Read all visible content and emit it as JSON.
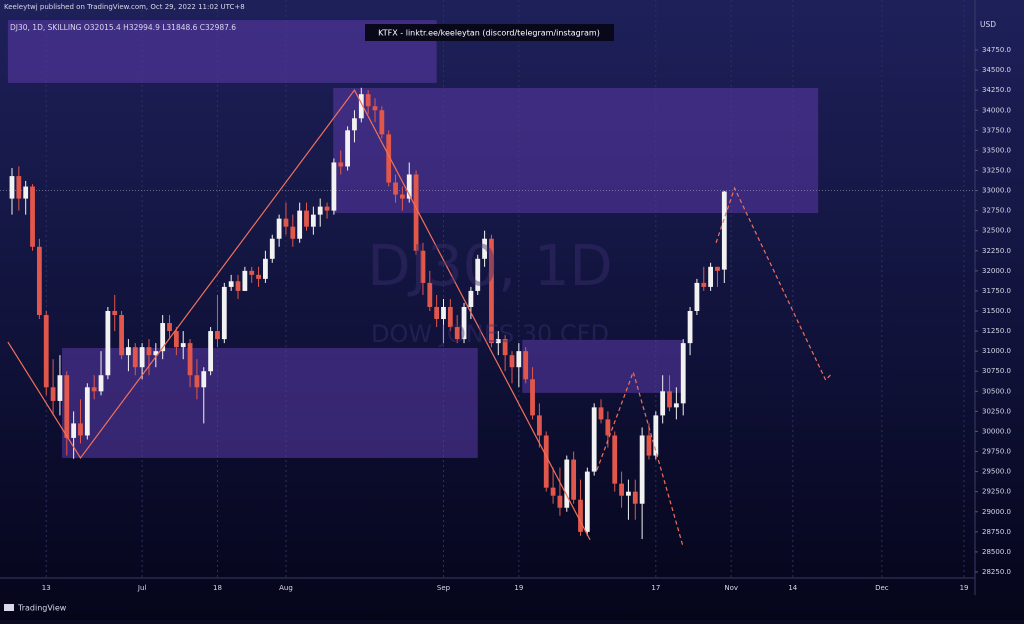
{
  "header": {
    "published": "Keeleytwj published on TradingView.com, Oct 29, 2022 11:02 UTC+8",
    "symbol_line": "DJ30, 1D, SKILLING O32015.4 H32994.9 L31848.6 C32987.6",
    "banner": "KTFX - linktr.ee/keeleytan (discord/telegram/instagram)",
    "brand": "TradingView"
  },
  "chart_data": {
    "type": "candlestick",
    "watermark": "DJ30, 1D",
    "watermark_sub": "DOW JONES 30 CFD",
    "y_unit": "USD",
    "up_color": "#f2f2f2",
    "down_color": "#e2574c",
    "ohlc": [
      [
        32900,
        33280,
        32700,
        33180
      ],
      [
        33180,
        33300,
        32750,
        32900
      ],
      [
        32900,
        33120,
        32700,
        33050
      ],
      [
        33050,
        33080,
        32250,
        32300
      ],
      [
        32300,
        32400,
        31400,
        31450
      ],
      [
        31450,
        31500,
        30450,
        30550
      ],
      [
        30550,
        30900,
        30200,
        30380
      ],
      [
        30380,
        30950,
        30200,
        30700
      ],
      [
        30700,
        30750,
        29700,
        29920
      ],
      [
        29920,
        30250,
        29660,
        30100
      ],
      [
        30100,
        30400,
        29850,
        29950
      ],
      [
        29950,
        30600,
        29900,
        30550
      ],
      [
        30550,
        30700,
        30400,
        30500
      ],
      [
        30500,
        31000,
        30450,
        30700
      ],
      [
        30700,
        31550,
        30650,
        31500
      ],
      [
        31500,
        31700,
        31250,
        31450
      ],
      [
        31450,
        31500,
        30900,
        30950
      ],
      [
        30950,
        31150,
        30750,
        31050
      ],
      [
        31050,
        31100,
        30700,
        30800
      ],
      [
        30800,
        31100,
        30650,
        31050
      ],
      [
        31050,
        31150,
        30700,
        30950
      ],
      [
        30950,
        31100,
        30800,
        31000
      ],
      [
        31000,
        31450,
        30900,
        31350
      ],
      [
        31350,
        31450,
        31150,
        31250
      ],
      [
        31250,
        31300,
        30950,
        31050
      ],
      [
        31050,
        31250,
        30900,
        31100
      ],
      [
        31100,
        31150,
        30550,
        30700
      ],
      [
        30700,
        30900,
        30400,
        30550
      ],
      [
        30550,
        30800,
        30100,
        30750
      ],
      [
        30750,
        31300,
        30700,
        31250
      ],
      [
        31250,
        31700,
        31050,
        31150
      ],
      [
        31150,
        31850,
        31100,
        31800
      ],
      [
        31800,
        31950,
        31750,
        31870
      ],
      [
        31870,
        31950,
        31650,
        31750
      ],
      [
        31750,
        32050,
        31750,
        32000
      ],
      [
        32000,
        32050,
        31850,
        31950
      ],
      [
        31950,
        32050,
        31800,
        31900
      ],
      [
        31900,
        32250,
        31850,
        32150
      ],
      [
        32150,
        32450,
        32100,
        32400
      ],
      [
        32400,
        32700,
        32300,
        32650
      ],
      [
        32650,
        32850,
        32450,
        32550
      ],
      [
        32550,
        32700,
        32300,
        32400
      ],
      [
        32400,
        32850,
        32350,
        32750
      ],
      [
        32750,
        32850,
        32500,
        32550
      ],
      [
        32550,
        32800,
        32450,
        32700
      ],
      [
        32700,
        32900,
        32550,
        32800
      ],
      [
        32800,
        32850,
        32650,
        32750
      ],
      [
        32750,
        33400,
        32700,
        33350
      ],
      [
        33350,
        33500,
        33200,
        33300
      ],
      [
        33300,
        33800,
        33250,
        33750
      ],
      [
        33750,
        34000,
        33600,
        33900
      ],
      [
        33900,
        34280,
        33850,
        34200
      ],
      [
        34200,
        34250,
        33950,
        34050
      ],
      [
        34050,
        34150,
        33850,
        34000
      ],
      [
        34000,
        34050,
        33650,
        33700
      ],
      [
        33700,
        33750,
        33050,
        33100
      ],
      [
        33100,
        33200,
        32850,
        32950
      ],
      [
        32950,
        33050,
        32750,
        32900
      ],
      [
        32900,
        33350,
        32850,
        33200
      ],
      [
        33200,
        33250,
        32200,
        32250
      ],
      [
        32250,
        32350,
        31700,
        31850
      ],
      [
        31850,
        32000,
        31500,
        31550
      ],
      [
        31550,
        31700,
        31300,
        31400
      ],
      [
        31400,
        31650,
        31100,
        31550
      ],
      [
        31550,
        31650,
        31250,
        31300
      ],
      [
        31300,
        31450,
        31100,
        31150
      ],
      [
        31150,
        31600,
        31100,
        31550
      ],
      [
        31550,
        31800,
        31400,
        31750
      ],
      [
        31750,
        32200,
        31700,
        32150
      ],
      [
        32150,
        32500,
        32050,
        32400
      ],
      [
        32400,
        32450,
        31050,
        31100
      ],
      [
        31100,
        31250,
        30950,
        31150
      ],
      [
        31150,
        31200,
        30750,
        30950
      ],
      [
        30950,
        31000,
        30600,
        30800
      ],
      [
        30800,
        31100,
        30550,
        31000
      ],
      [
        31000,
        31050,
        30600,
        30650
      ],
      [
        30650,
        30800,
        30150,
        30200
      ],
      [
        30200,
        30350,
        29800,
        29950
      ],
      [
        29950,
        30000,
        29250,
        29300
      ],
      [
        29300,
        29550,
        29100,
        29200
      ],
      [
        29200,
        29550,
        28950,
        29050
      ],
      [
        29050,
        29700,
        29000,
        29650
      ],
      [
        29650,
        29750,
        29100,
        29150
      ],
      [
        29150,
        29400,
        28700,
        28750
      ],
      [
        28750,
        29550,
        28700,
        29500
      ],
      [
        29500,
        30350,
        29450,
        30300
      ],
      [
        30300,
        30400,
        30100,
        30150
      ],
      [
        30150,
        30250,
        29800,
        29950
      ],
      [
        29950,
        30000,
        29250,
        29350
      ],
      [
        29350,
        29500,
        29050,
        29200
      ],
      [
        29200,
        29400,
        28900,
        29250
      ],
      [
        29250,
        29400,
        28900,
        29100
      ],
      [
        29100,
        30050,
        28660,
        29950
      ],
      [
        29950,
        30100,
        29650,
        29700
      ],
      [
        29700,
        30250,
        29650,
        30200
      ],
      [
        30200,
        30700,
        30100,
        30500
      ],
      [
        30500,
        30700,
        30250,
        30300
      ],
      [
        30300,
        30550,
        30150,
        30350
      ],
      [
        30350,
        31150,
        30200,
        31100
      ],
      [
        31100,
        31550,
        30950,
        31500
      ],
      [
        31500,
        31900,
        31450,
        31850
      ],
      [
        31850,
        32050,
        31750,
        31800
      ],
      [
        31800,
        32100,
        31750,
        32050
      ],
      [
        32050,
        32050,
        31800,
        32000
      ],
      [
        32015.4,
        32994.9,
        31848.6,
        32987.6
      ]
    ],
    "xlim": [
      -1.75,
      140.6
    ],
    "xticks": [
      {
        "value": 5,
        "label": "13"
      },
      {
        "value": 19,
        "label": "Jul"
      },
      {
        "value": 30,
        "label": "18"
      },
      {
        "value": 40,
        "label": "Aug"
      },
      {
        "value": 63,
        "label": "Sep"
      },
      {
        "value": 74,
        "label": "19"
      },
      {
        "value": 94,
        "label": "17"
      },
      {
        "value": 105,
        "label": "Nov"
      },
      {
        "value": 114,
        "label": "14"
      },
      {
        "value": 127,
        "label": "Dec"
      },
      {
        "value": 139,
        "label": "19"
      }
    ],
    "ylim": [
      28175,
      35373
    ],
    "yticks": [
      {
        "value": 28250,
        "label": "28250.0"
      },
      {
        "value": 28500,
        "label": "28500.0"
      },
      {
        "value": 28750,
        "label": "28750.0"
      },
      {
        "value": 29000,
        "label": "29000.0"
      },
      {
        "value": 29250,
        "label": "29250.0"
      },
      {
        "value": 29500,
        "label": "29500.0"
      },
      {
        "value": 29750,
        "label": "29750.0"
      },
      {
        "value": 30000,
        "label": "30000.0"
      },
      {
        "value": 30250,
        "label": "30250.0"
      },
      {
        "value": 30500,
        "label": "30500.0"
      },
      {
        "value": 30750,
        "label": "30750.0"
      },
      {
        "value": 31000,
        "label": "31000.0"
      },
      {
        "value": 31250,
        "label": "31250.0"
      },
      {
        "value": 31500,
        "label": "31500.0"
      },
      {
        "value": 31750,
        "label": "31750.0"
      },
      {
        "value": 32000,
        "label": "32000.0"
      },
      {
        "value": 32250,
        "label": "32250.0"
      },
      {
        "value": 32500,
        "label": "32500.0"
      },
      {
        "value": 32750,
        "label": "32750.0"
      },
      {
        "value": 33000,
        "label": "33000.0"
      },
      {
        "value": 33250,
        "label": "33250.0"
      },
      {
        "value": 33500,
        "label": "33500.0"
      },
      {
        "value": 33750,
        "label": "33750.0"
      },
      {
        "value": 34000,
        "label": "34000.0"
      },
      {
        "value": 34250,
        "label": "34250.0"
      },
      {
        "value": 34500,
        "label": "34500.0"
      },
      {
        "value": 34750,
        "label": "34750.0"
      }
    ],
    "hline": 33000,
    "zone_color": "#5b3aa8",
    "zones": [
      {
        "x": [
          -0.6,
          62
        ],
        "y": [
          34340,
          35123
        ]
      },
      {
        "x": [
          46.9,
          117.7
        ],
        "y": [
          32720,
          34277
        ]
      },
      {
        "x": [
          7.3,
          68
        ],
        "y": [
          29670,
          31040
        ]
      },
      {
        "x": [
          74.5,
          98
        ],
        "y": [
          30480,
          31140
        ]
      }
    ],
    "line_color": "#f0705a",
    "zigzag": {
      "x": [
        -0.6,
        10,
        50,
        84.4
      ],
      "y": [
        31115,
        29670,
        34250,
        28650
      ]
    },
    "projections": [
      {
        "x": [
          85.4,
          90.7,
          98
        ],
        "y": [
          29520,
          30740,
          28560
        ]
      },
      {
        "x": [
          102.8,
          105.5,
          118.8,
          119.8
        ],
        "y": [
          32350,
          33030,
          30640,
          30730
        ]
      }
    ]
  }
}
